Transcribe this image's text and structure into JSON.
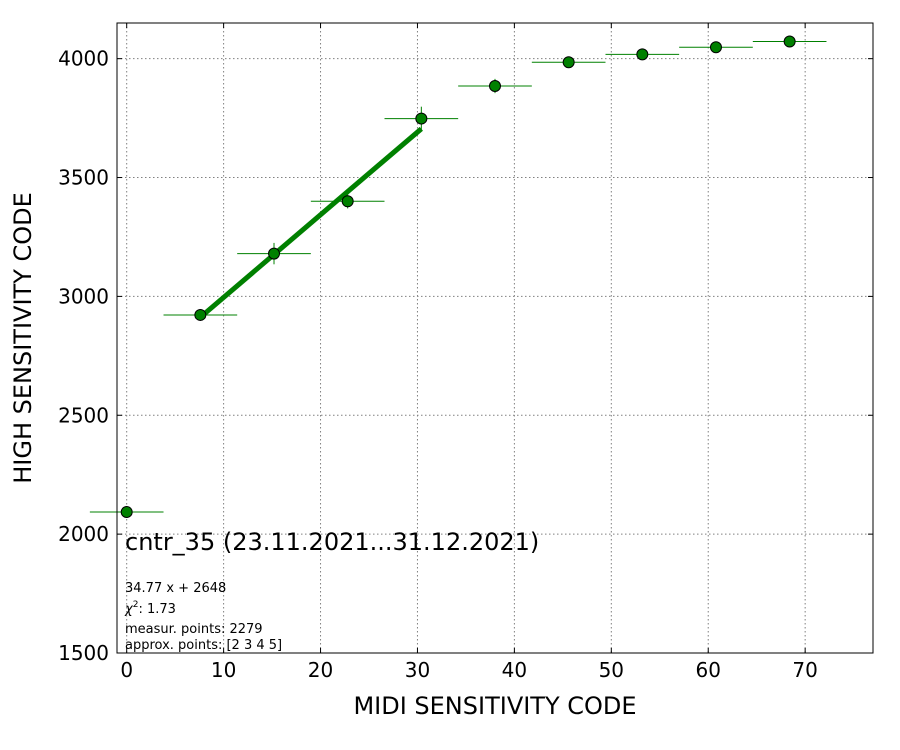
{
  "chart_data": {
    "type": "scatter",
    "xlabel": "MIDI SENSITIVITY CODE",
    "ylabel": "HIGH SENSITIVITY CODE",
    "xlim": [
      -1,
      77
    ],
    "ylim": [
      1500,
      4150
    ],
    "xticks": [
      0,
      10,
      20,
      30,
      40,
      50,
      60,
      70
    ],
    "yticks": [
      1500,
      2000,
      2500,
      3000,
      3500,
      4000
    ],
    "grid": true,
    "marker_color": "#008000",
    "marker_edge_color": "#000000",
    "fit_color": "#008000",
    "points": [
      {
        "x": 0.0,
        "y": 2093,
        "xerr": 3.8,
        "yerr": 10
      },
      {
        "x": 7.6,
        "y": 2922,
        "xerr": 3.8,
        "yerr": 25
      },
      {
        "x": 15.2,
        "y": 3180,
        "xerr": 3.8,
        "yerr": 45
      },
      {
        "x": 22.8,
        "y": 3400,
        "xerr": 3.8,
        "yerr": 30
      },
      {
        "x": 30.4,
        "y": 3748,
        "xerr": 3.8,
        "yerr": 50
      },
      {
        "x": 38.0,
        "y": 3885,
        "xerr": 3.8,
        "yerr": 30
      },
      {
        "x": 45.6,
        "y": 3985,
        "xerr": 3.8,
        "yerr": 15
      },
      {
        "x": 53.2,
        "y": 4018,
        "xerr": 3.8,
        "yerr": 12
      },
      {
        "x": 60.8,
        "y": 4048,
        "xerr": 3.8,
        "yerr": 10
      },
      {
        "x": 68.4,
        "y": 4072,
        "xerr": 3.8,
        "yerr": 10
      }
    ],
    "fit": {
      "slope": 34.77,
      "intercept": 2648,
      "x_range": [
        7.6,
        30.4
      ]
    },
    "annotation_title": "cntr_35 (23.11.2021...31.12.2021)",
    "annotations": {
      "equation": "34.77 x + 2648",
      "chi2_label": "χ",
      "chi2_sup": "2",
      "chi2_value": ": 1.73",
      "measur_points": "measur. points: 2279",
      "approx_points": "approx. points: [2 3 4 5]"
    }
  }
}
